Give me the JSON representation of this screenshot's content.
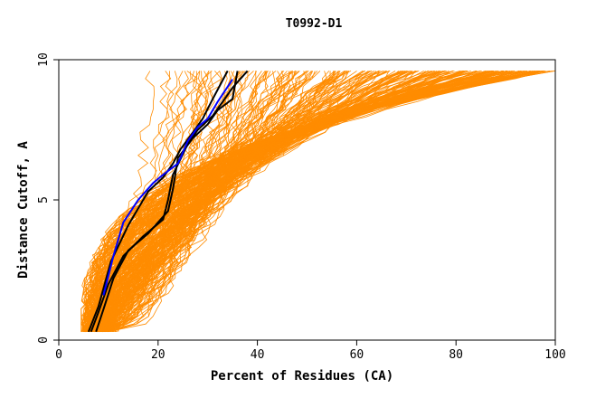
{
  "chart_data": {
    "type": "line",
    "title": "T0992-D1",
    "xlabel": "Percent of Residues (CA)",
    "ylabel": "Distance Cutoff, A",
    "xlim": [
      0,
      100
    ],
    "ylim": [
      0,
      10
    ],
    "xticks": [
      "0",
      "20",
      "40",
      "60",
      "80",
      "100"
    ],
    "yticks": [
      "0",
      "5",
      "10"
    ],
    "grid": false,
    "colors": {
      "background_curves": "#ff8c00",
      "highlight_black": "#000000",
      "highlight_blue": "#0000ff",
      "axes": "#000000"
    },
    "highlight_series": [
      {
        "color": "#000000",
        "x": [
          6.5,
          8,
          10,
          13,
          17,
          21,
          22,
          23,
          26,
          28,
          31,
          33,
          35,
          38
        ],
        "y": [
          0.3,
          1.0,
          2.0,
          3.0,
          3.7,
          4.3,
          5.0,
          5.9,
          7.0,
          7.5,
          8.0,
          8.5,
          9.0,
          9.6
        ]
      },
      {
        "color": "#000000",
        "x": [
          7.5,
          9,
          11,
          14,
          18,
          22,
          23,
          24,
          27,
          30,
          32,
          35,
          36
        ],
        "y": [
          0.3,
          1.1,
          2.2,
          3.2,
          3.8,
          4.6,
          5.4,
          6.5,
          7.2,
          7.7,
          8.2,
          8.6,
          9.6
        ]
      },
      {
        "color": "#000000",
        "x": [
          6,
          8,
          10.5,
          14,
          18,
          21,
          23,
          24.5,
          27,
          29,
          31,
          34
        ],
        "y": [
          0.3,
          1.2,
          2.8,
          4.1,
          5.3,
          5.8,
          6.3,
          6.8,
          7.4,
          7.9,
          8.6,
          9.6
        ]
      },
      {
        "color": "#0000ff",
        "x": [
          9,
          11,
          13,
          16,
          19,
          21,
          24,
          26,
          28,
          30,
          32,
          35
        ],
        "y": [
          1.6,
          3.0,
          4.2,
          5.0,
          5.6,
          5.9,
          6.3,
          7.1,
          7.6,
          7.9,
          8.5,
          9.3
        ]
      }
    ]
  }
}
